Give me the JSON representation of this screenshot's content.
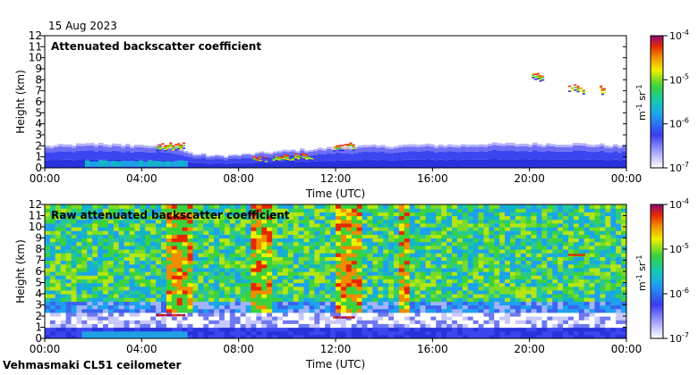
{
  "header": {
    "date": "15 Aug 2023"
  },
  "footer": {
    "instrument": "Vehmasmaki CL51 ceilometer"
  },
  "chart_data": [
    {
      "type": "heatmap",
      "title": "Attenuated backscatter coefficient",
      "xlabel": "Time (UTC)",
      "ylabel": "Height (km)",
      "x_ticks": [
        "00:00",
        "04:00",
        "08:00",
        "12:00",
        "16:00",
        "20:00",
        "00:00"
      ],
      "x_range_hours": [
        0,
        24
      ],
      "y_ticks": [
        0,
        1,
        2,
        3,
        4,
        5,
        6,
        7,
        8,
        9,
        10,
        11,
        12
      ],
      "ylim": [
        0,
        12
      ],
      "colorbar": {
        "unit": "m-1 sr-1",
        "scale": "log",
        "range": [
          1e-07,
          0.0001
        ],
        "ticks": [
          "10-7",
          "10-6",
          "10-5",
          "10-4"
        ]
      },
      "features": {
        "boundary_layer_top_km": [
          [
            0,
            2.0
          ],
          [
            1,
            2.1
          ],
          [
            2,
            2.2
          ],
          [
            3,
            2.1
          ],
          [
            4,
            2.0
          ],
          [
            5,
            2.1
          ],
          [
            6,
            1.3
          ],
          [
            7,
            1.1
          ],
          [
            8,
            1.2
          ],
          [
            9,
            1.4
          ],
          [
            10,
            1.6
          ],
          [
            11,
            1.7
          ],
          [
            12,
            1.9
          ],
          [
            13,
            2.0
          ],
          [
            14,
            2.0
          ],
          [
            15,
            2.1
          ],
          [
            16,
            2.1
          ],
          [
            17,
            2.1
          ],
          [
            18,
            2.2
          ],
          [
            19,
            2.2
          ],
          [
            20,
            2.2
          ],
          [
            21,
            2.2
          ],
          [
            22,
            2.2
          ],
          [
            23,
            2.1
          ],
          [
            24,
            2.0
          ]
        ],
        "cloud_layers": [
          {
            "start_h": 4.6,
            "end_h": 5.8,
            "height_km": 2.1
          },
          {
            "start_h": 8.6,
            "end_h": 9.2,
            "height_km": 0.9
          },
          {
            "start_h": 9.4,
            "end_h": 11.2,
            "height_km": 1.1
          },
          {
            "start_h": 11.9,
            "end_h": 12.8,
            "height_km": 2.1
          },
          {
            "start_h": 20.1,
            "end_h": 20.6,
            "height_km": 8.6
          },
          {
            "start_h": 21.6,
            "end_h": 22.3,
            "height_km": 7.5
          },
          {
            "start_h": 22.9,
            "end_h": 23.1,
            "height_km": 7.4
          }
        ]
      }
    },
    {
      "type": "heatmap",
      "title": "Raw attenuated backscatter coefficient",
      "xlabel": "Time (UTC)",
      "ylabel": "Height (km)",
      "x_ticks": [
        "00:00",
        "04:00",
        "08:00",
        "12:00",
        "16:00",
        "20:00",
        "00:00"
      ],
      "x_range_hours": [
        0,
        24
      ],
      "y_ticks": [
        0,
        1,
        2,
        3,
        4,
        5,
        6,
        7,
        8,
        9,
        10,
        11,
        12
      ],
      "ylim": [
        0,
        12
      ],
      "colorbar": {
        "unit": "m-1 sr-1",
        "scale": "log",
        "range": [
          1e-07,
          0.0001
        ],
        "ticks": [
          "10-7",
          "10-6",
          "10-5",
          "10-4"
        ]
      },
      "features": {
        "noise_bands_h": [
          [
            5.0,
            6.0
          ],
          [
            8.5,
            9.3
          ],
          [
            11.9,
            12.9
          ],
          [
            14.5,
            14.9
          ]
        ],
        "cloud_layers": [
          {
            "start_h": 4.6,
            "end_h": 5.8,
            "height_km": 2.1
          },
          {
            "start_h": 11.9,
            "end_h": 12.8,
            "height_km": 1.9
          },
          {
            "start_h": 21.6,
            "end_h": 22.3,
            "height_km": 7.5
          }
        ]
      }
    }
  ]
}
